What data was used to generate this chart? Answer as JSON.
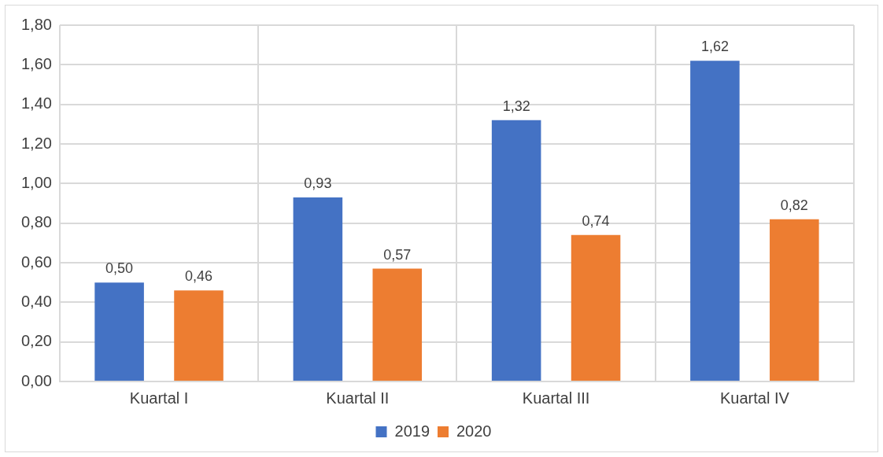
{
  "chart_data": {
    "type": "bar",
    "categories": [
      "Kuartal I",
      "Kuartal II",
      "Kuartal III",
      "Kuartal IV"
    ],
    "series": [
      {
        "name": "2019",
        "color": "#4472c4",
        "values": [
          0.5,
          0.93,
          1.32,
          1.62
        ],
        "value_labels": [
          "0,50",
          "0,93",
          "1,32",
          "1,62"
        ]
      },
      {
        "name": "2020",
        "color": "#ed7d31",
        "values": [
          0.46,
          0.57,
          0.74,
          0.82
        ],
        "value_labels": [
          "0,46",
          "0,57",
          "0,74",
          "0,82"
        ]
      }
    ],
    "ylim": [
      0,
      1.8
    ],
    "yticks": [
      {
        "value": 0,
        "label": "0,00"
      },
      {
        "value": 0.2,
        "label": "0,20"
      },
      {
        "value": 0.4,
        "label": "0,40"
      },
      {
        "value": 0.6,
        "label": "0,60"
      },
      {
        "value": 0.8,
        "label": "0,80"
      },
      {
        "value": 1,
        "label": "1,00"
      },
      {
        "value": 1.2,
        "label": "1,20"
      },
      {
        "value": 1.4,
        "label": "1,40"
      },
      {
        "value": 1.6,
        "label": "1,60"
      },
      {
        "value": 1.8,
        "label": "1,80"
      }
    ],
    "grid": true,
    "legend": "bottom"
  }
}
